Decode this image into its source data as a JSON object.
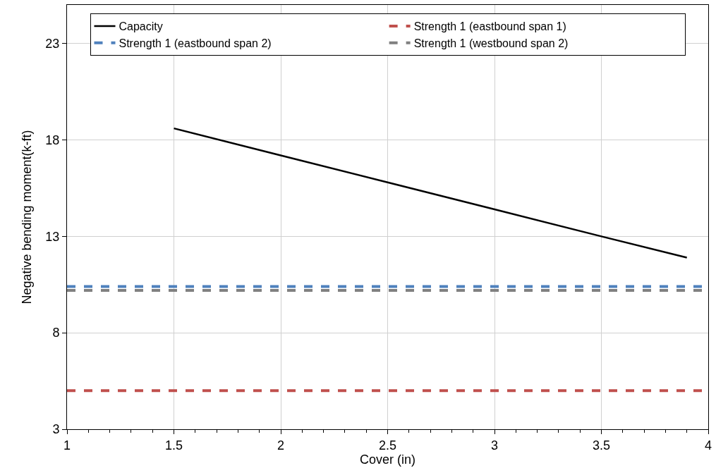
{
  "chart_data": {
    "type": "line",
    "xlabel": "Cover (in)",
    "ylabel": "Negative bending moment(k-ft)",
    "series": [
      {
        "name": "Capacity",
        "color": "#000000",
        "x": [
          1.5,
          2,
          2.5,
          3,
          3.5,
          3.9
        ],
        "values": [
          18.6,
          17.2,
          15.8,
          14.4,
          13.0,
          11.9
        ],
        "line_style": "solid"
      },
      {
        "name": "Strength 1 (eastbound span 1)",
        "color": "#c0504d",
        "x": [
          1,
          4
        ],
        "values": [
          5.0,
          5.0
        ],
        "line_style": "dashed"
      },
      {
        "name": "Strength 1 (eastbound span 2)",
        "color": "#4f81bd",
        "x": [
          1,
          4
        ],
        "values": [
          10.4,
          10.4
        ],
        "line_style": "dashed"
      },
      {
        "name": "Strength 1 (westbound span 2)",
        "color": "#808080",
        "x": [
          1,
          4
        ],
        "values": [
          10.2,
          10.2
        ],
        "line_style": "dashed"
      }
    ],
    "xlim": [
      1,
      4
    ],
    "xticks": [
      1,
      1.5,
      2,
      2.5,
      3,
      3.5,
      4
    ],
    "ylim": [
      3,
      25
    ],
    "yticks": [
      3,
      8,
      13,
      18,
      23
    ],
    "grid": true,
    "legend": "top",
    "marker": "none"
  }
}
